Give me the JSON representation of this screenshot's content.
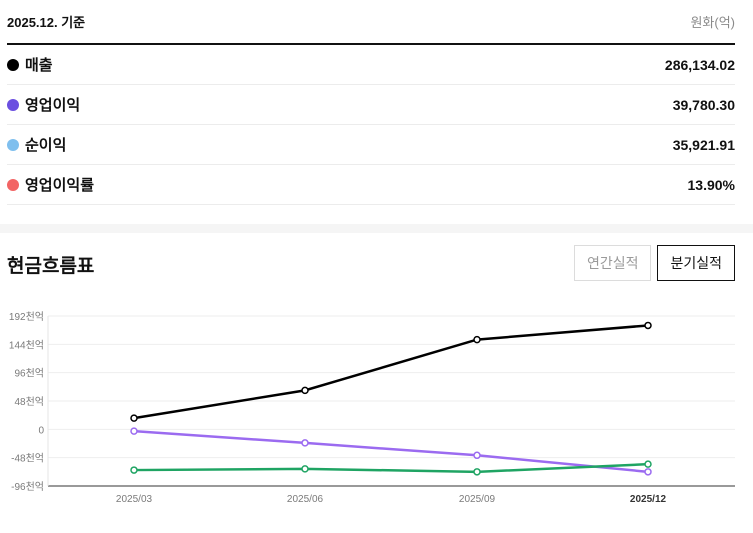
{
  "summary": {
    "basis": "2025.12. 기준",
    "unit": "원화(억)",
    "rows": [
      {
        "label": "매출",
        "value": "286,134.02",
        "color": "#000000"
      },
      {
        "label": "영업이익",
        "value": "39,780.30",
        "color": "#6b4fe0"
      },
      {
        "label": "순이익",
        "value": "35,921.91",
        "color": "#7fbfee"
      },
      {
        "label": "영업이익률",
        "value": "13.90%",
        "color": "#f26464"
      }
    ]
  },
  "cashflow": {
    "title": "현금흐름표",
    "tabs": [
      {
        "label": "연간실적",
        "selected": false
      },
      {
        "label": "분기실적",
        "selected": true
      }
    ]
  },
  "chart_data": {
    "type": "line",
    "x": [
      "2025/03",
      "2025/06",
      "2025/09",
      "2025/12"
    ],
    "yticks": [
      "192천억",
      "144천억",
      "96천억",
      "48천억",
      "0",
      "-48천억",
      "-96천억"
    ],
    "ylim": [
      -96,
      192
    ],
    "series": [
      {
        "color": "#000000",
        "values": [
          19,
          66,
          152,
          176
        ]
      },
      {
        "color": "#9b6bf0",
        "values": [
          -3,
          -23,
          -44,
          -72
        ]
      },
      {
        "color": "#1fa463",
        "values": [
          -69,
          -67,
          -72,
          -59
        ]
      }
    ]
  }
}
